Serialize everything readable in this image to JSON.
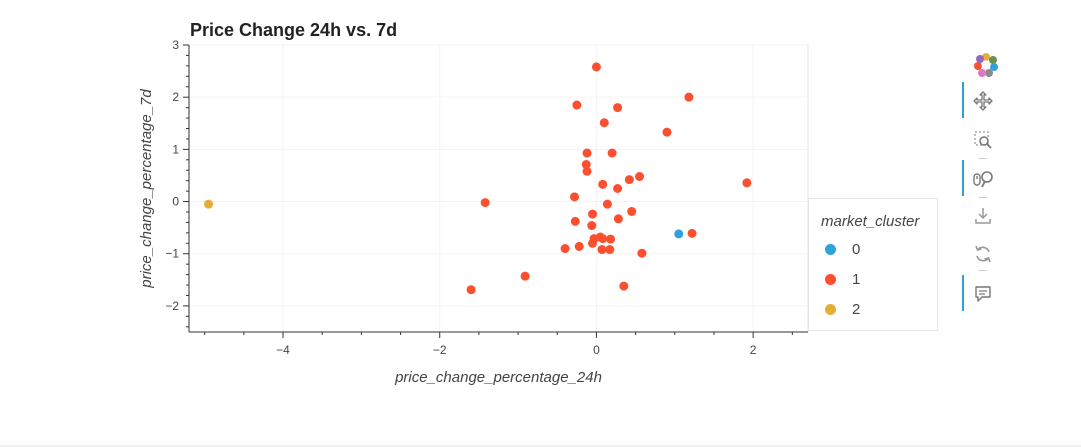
{
  "colors": {
    "cluster_0": "#30a2da",
    "cluster_1": "#fc4f30",
    "cluster_2": "#e5ae38",
    "grid": "#e5e5e5",
    "axis": "#333333"
  },
  "toolbar": {
    "items": [
      {
        "name": "bokeh-logo-icon",
        "active": false
      },
      {
        "name": "pan-icon",
        "active": true
      },
      {
        "name": "box-zoom-icon",
        "active": false
      },
      {
        "name": "wheel-zoom-icon",
        "active": true
      },
      {
        "name": "save-icon",
        "active": false
      },
      {
        "name": "reset-icon",
        "active": false
      },
      {
        "name": "hover-icon",
        "active": true
      }
    ]
  },
  "chart_data": {
    "type": "scatter",
    "title": "Price Change 24h vs. 7d",
    "xlabel": "price_change_percentage_24h",
    "ylabel": "price_change_percentage_7d",
    "xlim": [
      -5.2,
      2.7
    ],
    "ylim": [
      -2.5,
      3.0
    ],
    "xticks": [
      -4,
      -2,
      0,
      2
    ],
    "xtick_labels": [
      "−4",
      "−2",
      "0",
      "2"
    ],
    "yticks": [
      -2,
      -1,
      0,
      1,
      2,
      3
    ],
    "ytick_labels": [
      "−2",
      "−1",
      "0",
      "1",
      "2",
      "3"
    ],
    "grid": true,
    "legend_title": "market_cluster",
    "legend_position": "right",
    "series": [
      {
        "name": "0",
        "points": [
          [
            1.05,
            -0.62
          ]
        ]
      },
      {
        "name": "1",
        "points": [
          [
            0.0,
            2.58
          ],
          [
            -0.25,
            1.85
          ],
          [
            1.18,
            2.0
          ],
          [
            0.27,
            1.8
          ],
          [
            0.1,
            1.51
          ],
          [
            0.9,
            1.33
          ],
          [
            -0.12,
            0.93
          ],
          [
            0.2,
            0.93
          ],
          [
            -0.13,
            0.71
          ],
          [
            -0.12,
            0.58
          ],
          [
            0.55,
            0.48
          ],
          [
            0.42,
            0.42
          ],
          [
            0.08,
            0.33
          ],
          [
            0.27,
            0.25
          ],
          [
            1.92,
            0.36
          ],
          [
            -0.28,
            0.09
          ],
          [
            -1.42,
            -0.02
          ],
          [
            0.14,
            -0.05
          ],
          [
            0.45,
            -0.19
          ],
          [
            -0.05,
            -0.24
          ],
          [
            0.28,
            -0.33
          ],
          [
            -0.27,
            -0.38
          ],
          [
            -0.06,
            -0.46
          ],
          [
            1.22,
            -0.61
          ],
          [
            0.05,
            -0.68
          ],
          [
            -0.03,
            -0.71
          ],
          [
            0.08,
            -0.71
          ],
          [
            0.18,
            -0.72
          ],
          [
            -0.05,
            -0.8
          ],
          [
            -0.22,
            -0.86
          ],
          [
            -0.4,
            -0.9
          ],
          [
            0.07,
            -0.92
          ],
          [
            0.17,
            -0.92
          ],
          [
            0.58,
            -0.99
          ],
          [
            -0.91,
            -1.43
          ],
          [
            0.35,
            -1.62
          ],
          [
            -1.6,
            -1.69
          ]
        ]
      },
      {
        "name": "2",
        "points": [
          [
            -4.95,
            -0.05
          ]
        ]
      }
    ]
  }
}
